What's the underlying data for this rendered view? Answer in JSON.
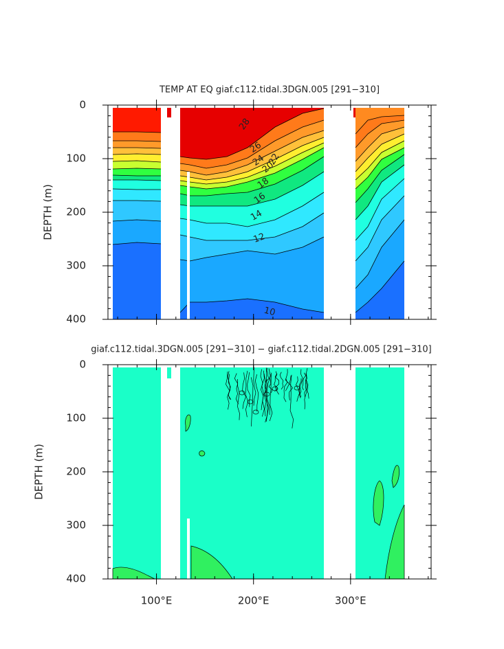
{
  "chart_data": [
    {
      "type": "contour",
      "title": "TEMP AT EQ giaf.c112.tidal.3DGN.005 [291−310]",
      "y_label": "DEPTH (m)",
      "xlim": [
        50,
        383
      ],
      "ylim": [
        0,
        400
      ],
      "yticks": [
        0,
        100,
        200,
        300,
        400
      ],
      "contour_labels": [
        28,
        26,
        24,
        22,
        20,
        18,
        16,
        14,
        12,
        10
      ]
    },
    {
      "type": "contour",
      "title": "giaf.c112.tidal.3DGN.005 [291−310] − giaf.c112.tidal.2DGN.005 [291−310]",
      "y_label": "DEPTH (m)",
      "xlim": [
        50,
        383
      ],
      "ylim": [
        0,
        400
      ],
      "yticks": [
        0,
        100,
        200,
        300,
        400
      ],
      "xticks": [
        {
          "value": 100,
          "label": "100°E"
        },
        {
          "value": 200,
          "label": "200°E"
        },
        {
          "value": 300,
          "label": "300°E"
        }
      ]
    }
  ]
}
